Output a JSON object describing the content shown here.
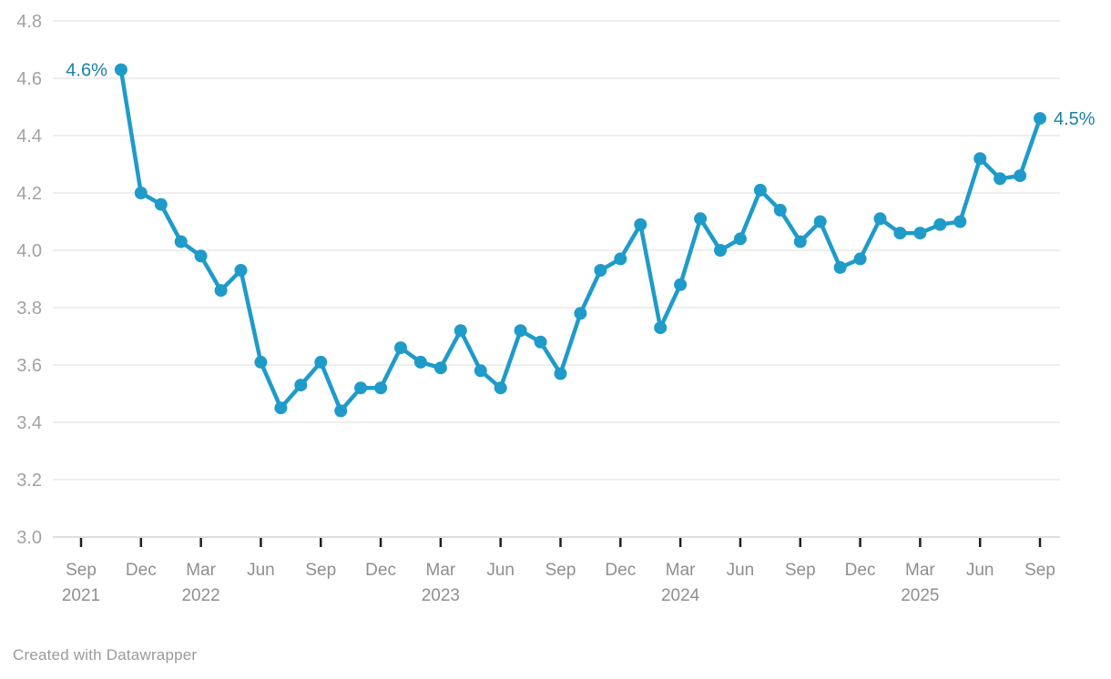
{
  "footer": {
    "credit": "Created with Datawrapper"
  },
  "chart_data": {
    "type": "line",
    "title": "",
    "xlabel": "",
    "ylabel": "",
    "unit": "%",
    "ylim": [
      3.0,
      4.8
    ],
    "yticks": [
      4.8,
      4.6,
      4.4,
      4.2,
      4.0,
      3.8,
      3.6,
      3.4,
      3.2,
      3.0
    ],
    "grid": "horizontal",
    "legend": "none",
    "point_labels": {
      "first": "4.6%",
      "last": "4.5%"
    },
    "x_ticks": [
      {
        "month": "Sep",
        "year": "2021",
        "date": "2021-09"
      },
      {
        "month": "Dec",
        "date": "2021-12"
      },
      {
        "month": "Mar",
        "year": "2022",
        "date": "2022-03"
      },
      {
        "month": "Jun",
        "date": "2022-06"
      },
      {
        "month": "Sep",
        "date": "2022-09"
      },
      {
        "month": "Dec",
        "date": "2022-12"
      },
      {
        "month": "Mar",
        "year": "2023",
        "date": "2023-03"
      },
      {
        "month": "Jun",
        "date": "2023-06"
      },
      {
        "month": "Sep",
        "date": "2023-09"
      },
      {
        "month": "Dec",
        "date": "2023-12"
      },
      {
        "month": "Mar",
        "year": "2024",
        "date": "2024-03"
      },
      {
        "month": "Jun",
        "date": "2024-06"
      },
      {
        "month": "Sep",
        "date": "2024-09"
      },
      {
        "month": "Dec",
        "date": "2024-12"
      },
      {
        "month": "Mar",
        "year": "2025",
        "date": "2025-03"
      },
      {
        "month": "Jun",
        "date": "2025-06"
      },
      {
        "month": "Sep",
        "date": "2025-09"
      }
    ],
    "points": [
      {
        "date": "2021-11",
        "value": 4.63
      },
      {
        "date": "2021-12",
        "value": 4.2
      },
      {
        "date": "2022-01",
        "value": 4.16
      },
      {
        "date": "2022-02",
        "value": 4.03
      },
      {
        "date": "2022-03",
        "value": 3.98
      },
      {
        "date": "2022-04",
        "value": 3.86
      },
      {
        "date": "2022-05",
        "value": 3.93
      },
      {
        "date": "2022-06",
        "value": 3.61
      },
      {
        "date": "2022-07",
        "value": 3.45
      },
      {
        "date": "2022-08",
        "value": 3.53
      },
      {
        "date": "2022-09",
        "value": 3.61
      },
      {
        "date": "2022-10",
        "value": 3.44
      },
      {
        "date": "2022-11",
        "value": 3.52
      },
      {
        "date": "2022-12",
        "value": 3.52
      },
      {
        "date": "2023-01",
        "value": 3.66
      },
      {
        "date": "2023-02",
        "value": 3.61
      },
      {
        "date": "2023-03",
        "value": 3.59
      },
      {
        "date": "2023-04",
        "value": 3.72
      },
      {
        "date": "2023-05",
        "value": 3.58
      },
      {
        "date": "2023-06",
        "value": 3.52
      },
      {
        "date": "2023-07",
        "value": 3.72
      },
      {
        "date": "2023-08",
        "value": 3.68
      },
      {
        "date": "2023-09",
        "value": 3.57
      },
      {
        "date": "2023-10",
        "value": 3.78
      },
      {
        "date": "2023-11",
        "value": 3.93
      },
      {
        "date": "2023-12",
        "value": 3.97
      },
      {
        "date": "2024-01",
        "value": 4.09
      },
      {
        "date": "2024-02",
        "value": 3.73
      },
      {
        "date": "2024-03",
        "value": 3.88
      },
      {
        "date": "2024-04",
        "value": 4.11
      },
      {
        "date": "2024-05",
        "value": 4.0
      },
      {
        "date": "2024-06",
        "value": 4.04
      },
      {
        "date": "2024-07",
        "value": 4.21
      },
      {
        "date": "2024-08",
        "value": 4.14
      },
      {
        "date": "2024-09",
        "value": 4.03
      },
      {
        "date": "2024-10",
        "value": 4.1
      },
      {
        "date": "2024-11",
        "value": 3.94
      },
      {
        "date": "2024-12",
        "value": 3.97
      },
      {
        "date": "2025-01",
        "value": 4.11
      },
      {
        "date": "2025-02",
        "value": 4.06
      },
      {
        "date": "2025-03",
        "value": 4.06
      },
      {
        "date": "2025-04",
        "value": 4.09
      },
      {
        "date": "2025-05",
        "value": 4.1
      },
      {
        "date": "2025-06",
        "value": 4.32
      },
      {
        "date": "2025-07",
        "value": 4.25
      },
      {
        "date": "2025-08",
        "value": 4.26
      },
      {
        "date": "2025-09",
        "value": 4.46
      }
    ],
    "colors": {
      "line": "#1f9bc9",
      "point": "#1f9bc9",
      "value_label": "#1d81a2",
      "grid": "#e8e8e8",
      "axis_baseline": "#d4d4d4",
      "tick": "#1f1f1f",
      "x_axis_text": "#8f8f8f",
      "y_axis_text": "#a2a2a2",
      "footer_text": "#9b9b9b",
      "background": "#ffffff"
    }
  }
}
